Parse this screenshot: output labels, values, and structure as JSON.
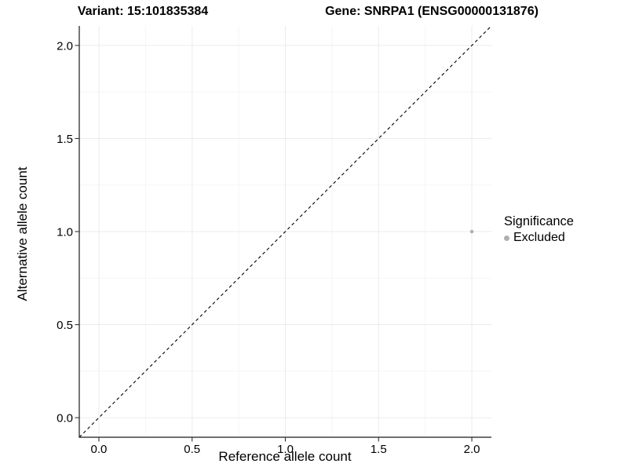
{
  "chart_data": {
    "type": "scatter",
    "title_left": "Variant: 15:101835384",
    "title_right": "Gene: SNRPA1 (ENSG00000131876)",
    "xlabel": "Reference allele count",
    "ylabel": "Alternative allele count",
    "xlim": [
      -0.105,
      2.105
    ],
    "ylim": [
      -0.105,
      2.105
    ],
    "x_ticks": [
      0.0,
      0.5,
      1.0,
      1.5,
      2.0
    ],
    "y_ticks": [
      0.0,
      0.5,
      1.0,
      1.5,
      2.0
    ],
    "x_tick_labels": [
      "0.0",
      "0.5",
      "1.0",
      "1.5",
      "2.0"
    ],
    "y_tick_labels": [
      "0.0",
      "0.5",
      "1.0",
      "1.5",
      "2.0"
    ],
    "grid": true,
    "grid_minor": true,
    "reference_line": {
      "style": "dashed",
      "color": "#000000",
      "from": [
        -0.105,
        -0.105
      ],
      "to": [
        2.105,
        2.105
      ],
      "meaning": "identity line y = x"
    },
    "series": [
      {
        "name": "Excluded",
        "color": "#b0b0b0",
        "points": [
          {
            "x": 2.0,
            "y": 1.0
          }
        ]
      }
    ],
    "legend": {
      "title": "Significance",
      "position": "right",
      "items": [
        {
          "label": "Excluded",
          "color": "#b0b0b0"
        }
      ]
    },
    "colors": {
      "background": "#ffffff",
      "grid_major": "#ebebeb",
      "grid_minor": "#f5f5f5",
      "axis_line": "#1a1a1a",
      "tick_mark": "#333333",
      "text": "#000000",
      "point_excluded": "#b0b0b0",
      "dashed_line": "#000000"
    }
  }
}
